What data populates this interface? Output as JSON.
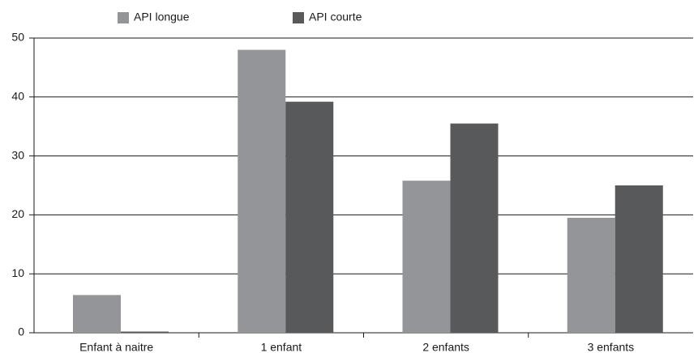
{
  "chart_data": {
    "type": "bar",
    "categories": [
      "Enfant à naitre",
      "1 enfant",
      "2 enfants",
      "3 enfants"
    ],
    "series": [
      {
        "name": "API longue",
        "color": "#939598",
        "values": [
          6.4,
          48,
          25.8,
          19.5
        ]
      },
      {
        "name": "API courte",
        "color": "#58595b",
        "values": [
          0.2,
          39.2,
          35.5,
          25
        ]
      }
    ],
    "ylim": [
      0,
      50
    ],
    "yticks": [
      0,
      10,
      20,
      30,
      40,
      50
    ],
    "grid": true,
    "legend": "top"
  }
}
